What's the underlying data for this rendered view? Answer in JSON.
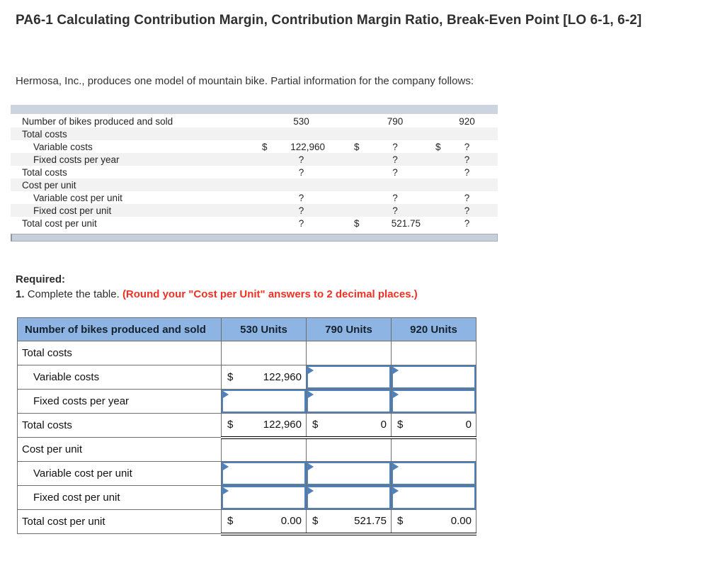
{
  "page": {
    "title": "PA6-1 Calculating Contribution Margin, Contribution Margin Ratio, Break-Even Point [LO 6-1, 6-2]",
    "intro": "Hermosa, Inc., produces one model of mountain bike. Partial information for the company follows:"
  },
  "required": {
    "heading": "Required:",
    "item_no": "1.",
    "text": "Complete the table.",
    "note": "(Round your \"Cost per Unit\" answers to 2 decimal places.)"
  },
  "info_table": {
    "rows": [
      {
        "label": "Number of bikes produced and sold",
        "indent": 0,
        "shaded": false,
        "values": [
          {
            "v": "530"
          },
          {
            "v": "790"
          },
          {
            "v": "920"
          }
        ]
      },
      {
        "label": "Total costs",
        "indent": 0,
        "shaded": true,
        "values": [
          {},
          {},
          {}
        ]
      },
      {
        "label": "Variable costs",
        "indent": 1,
        "shaded": false,
        "values": [
          {
            "d": "$",
            "v": "122,960"
          },
          {
            "d": "$",
            "v": "?"
          },
          {
            "d": "$",
            "v": "?"
          }
        ]
      },
      {
        "label": "Fixed costs per year",
        "indent": 1,
        "shaded": true,
        "values": [
          {
            "v": "?"
          },
          {
            "v": "?"
          },
          {
            "v": "?"
          }
        ]
      },
      {
        "label": "Total costs",
        "indent": 0,
        "shaded": false,
        "values": [
          {
            "v": "?"
          },
          {
            "v": "?"
          },
          {
            "v": "?"
          }
        ]
      },
      {
        "label": "Cost per unit",
        "indent": 0,
        "shaded": true,
        "values": [
          {},
          {},
          {}
        ]
      },
      {
        "label": "Variable cost per unit",
        "indent": 1,
        "shaded": false,
        "values": [
          {
            "v": "?"
          },
          {
            "v": "?"
          },
          {
            "v": "?"
          }
        ]
      },
      {
        "label": "Fixed cost per unit",
        "indent": 1,
        "shaded": true,
        "values": [
          {
            "v": "?"
          },
          {
            "v": "?"
          },
          {
            "v": "?"
          }
        ]
      },
      {
        "label": "Total cost per unit",
        "indent": 0,
        "shaded": false,
        "values": [
          {
            "v": "?"
          },
          {
            "d": "$",
            "v": "521.75"
          },
          {
            "v": "?"
          }
        ]
      }
    ]
  },
  "work_table": {
    "headers": [
      "Number of bikes produced and sold",
      "530 Units",
      "790 Units",
      "920 Units"
    ],
    "rows": [
      {
        "label": "Total costs",
        "indent": 0,
        "total": false,
        "cells": [
          {
            "t": "blank"
          },
          {
            "t": "blank"
          },
          {
            "t": "blank"
          }
        ]
      },
      {
        "label": "Variable costs",
        "indent": 1,
        "total": false,
        "cells": [
          {
            "t": "static",
            "d": "$",
            "v": "122,960"
          },
          {
            "t": "input"
          },
          {
            "t": "input"
          }
        ]
      },
      {
        "label": "Fixed costs per year",
        "indent": 1,
        "total": false,
        "cells": [
          {
            "t": "input"
          },
          {
            "t": "input"
          },
          {
            "t": "input"
          }
        ]
      },
      {
        "label": "Total costs",
        "indent": 0,
        "total": true,
        "cells": [
          {
            "t": "static",
            "d": "$",
            "v": "122,960"
          },
          {
            "t": "static",
            "d": "$",
            "v": "0"
          },
          {
            "t": "static",
            "d": "$",
            "v": "0"
          }
        ]
      },
      {
        "label": "Cost per unit",
        "indent": 0,
        "total": false,
        "cells": [
          {
            "t": "blank"
          },
          {
            "t": "blank"
          },
          {
            "t": "blank"
          }
        ]
      },
      {
        "label": "Variable cost per unit",
        "indent": 1,
        "total": false,
        "cells": [
          {
            "t": "input"
          },
          {
            "t": "input"
          },
          {
            "t": "input"
          }
        ]
      },
      {
        "label": "Fixed cost per unit",
        "indent": 1,
        "total": false,
        "cells": [
          {
            "t": "input"
          },
          {
            "t": "input"
          },
          {
            "t": "input"
          }
        ]
      },
      {
        "label": "Total cost per unit",
        "indent": 0,
        "total": true,
        "cells": [
          {
            "t": "static",
            "d": "$",
            "v": "0.00"
          },
          {
            "t": "static",
            "d": "$",
            "v": "521.75"
          },
          {
            "t": "static",
            "d": "$",
            "v": "0.00"
          }
        ]
      }
    ]
  },
  "colors": {
    "header_blue": "#8eb4e3",
    "input_border": "#4f81bd",
    "top_band": "#ccd5df",
    "scrollbar_fill": "#c7d0da",
    "scrollbar_border": "#a2adb9",
    "shaded_row": "#f2f2f2",
    "grid": "#6e6e6e",
    "note_red": "#ee3124",
    "text": "#333333"
  }
}
